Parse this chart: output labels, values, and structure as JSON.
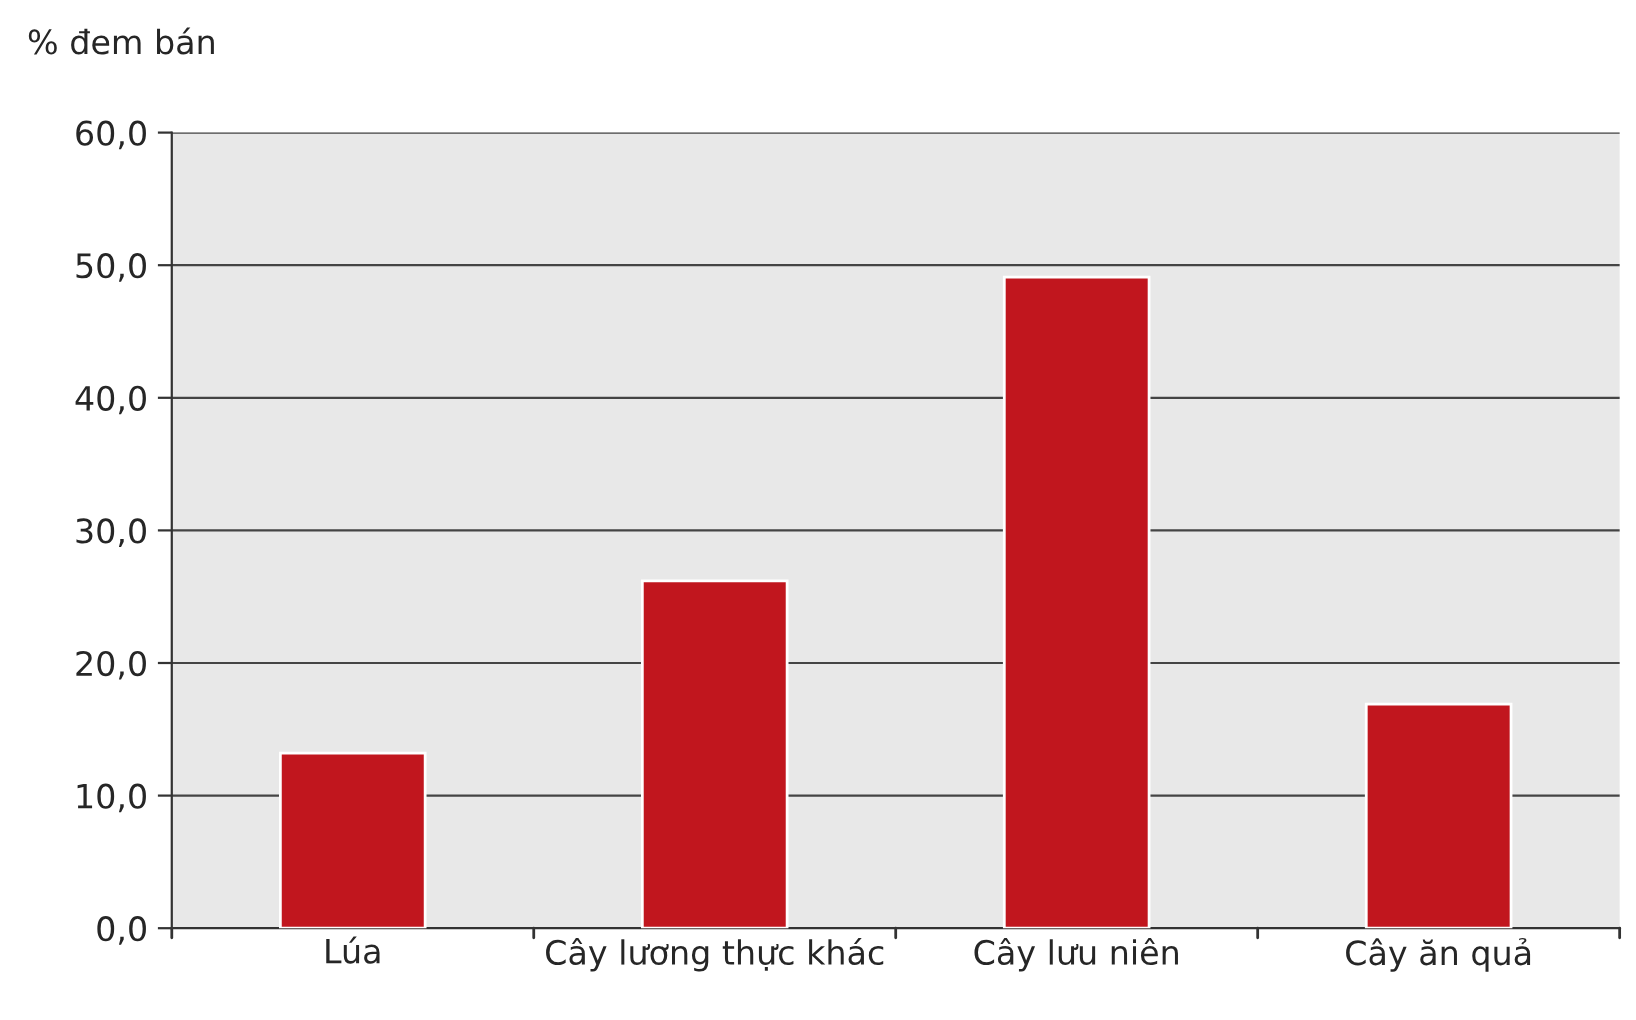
{
  "chart_data": {
    "type": "bar",
    "ylabel": "% đem bán",
    "categories": [
      "Lúa",
      "Cây lương thực khác",
      "Cây lưu niên",
      "Cây ăn quả"
    ],
    "values": [
      13.2,
      26.2,
      49.1,
      16.9
    ],
    "color": "#c1161e",
    "ylim": [
      0,
      60
    ],
    "yticks": [
      {
        "value": 0,
        "label": "0,0"
      },
      {
        "value": 10,
        "label": "10,0"
      },
      {
        "value": 20,
        "label": "20,0"
      },
      {
        "value": 30,
        "label": "30,0"
      },
      {
        "value": 40,
        "label": "40,0"
      },
      {
        "value": 50,
        "label": "50,0"
      },
      {
        "value": 60,
        "label": "60,0"
      }
    ],
    "grid": "y",
    "legend": false
  }
}
